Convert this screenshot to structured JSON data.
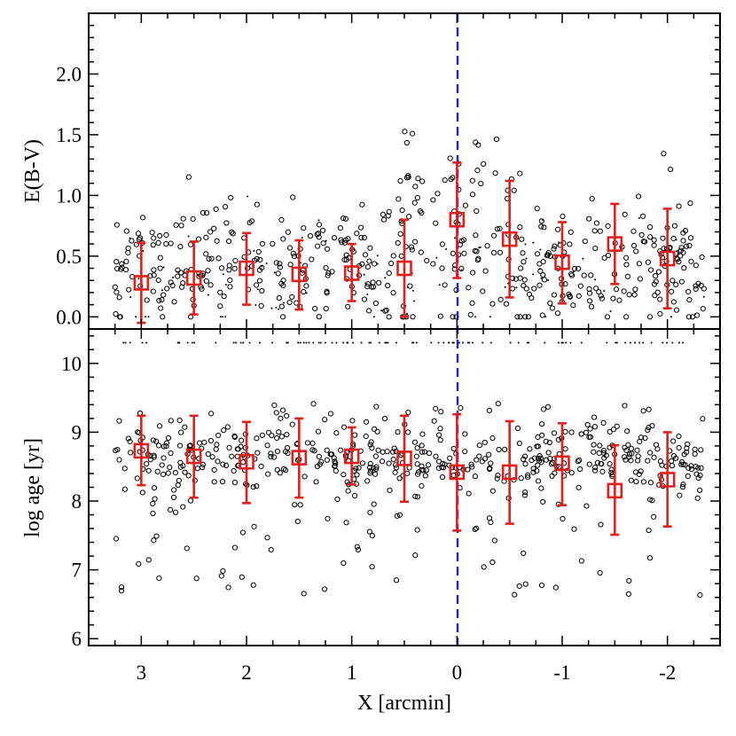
{
  "chart_data": {
    "type": "scatter",
    "xlabel": "X [arcmin]",
    "xlim": [
      3.5,
      -2.5
    ],
    "xticks": [
      3,
      2,
      1,
      0,
      -1,
      -2
    ],
    "xtick_labels": [
      "3",
      "2",
      "1",
      "0",
      "-1",
      "-2"
    ],
    "reference_line": {
      "x": 0,
      "style": "dashed",
      "color": "#1f1fd6"
    },
    "colors": {
      "scatter": "#000000",
      "binned": "#e0201c",
      "reference": "#1f1fd6"
    },
    "panels": [
      {
        "name": "top",
        "ylabel": "E(B-V)",
        "ylim": [
          -0.1,
          2.5
        ],
        "yticks": [
          0.0,
          0.5,
          1.0,
          1.5,
          2.0
        ],
        "ytick_labels": [
          "0.0",
          "0.5",
          "1.0",
          "1.5",
          "2.0"
        ],
        "binned": {
          "x": [
            3,
            2.5,
            2,
            1.5,
            1,
            0.5,
            0,
            -0.5,
            -1,
            -1.5,
            -2
          ],
          "y": [
            0.28,
            0.32,
            0.4,
            0.35,
            0.36,
            0.4,
            0.8,
            0.64,
            0.45,
            0.6,
            0.48
          ],
          "err_low": [
            -0.05,
            0.02,
            0.1,
            0.06,
            0.13,
            0.0,
            0.32,
            0.16,
            0.11,
            0.27,
            0.07
          ],
          "err_high": [
            0.61,
            0.62,
            0.69,
            0.63,
            0.6,
            0.8,
            1.27,
            1.12,
            0.78,
            0.93,
            0.89
          ]
        },
        "scatter_seed": 11,
        "scatter_count": 520
      },
      {
        "name": "bottom",
        "ylabel": "log age [yr]",
        "ylim": [
          5.9,
          10.5
        ],
        "yticks": [
          6,
          7,
          8,
          9,
          10
        ],
        "ytick_labels": [
          "6",
          "7",
          "8",
          "9",
          "10"
        ],
        "binned": {
          "x": [
            3,
            2.5,
            2,
            1.5,
            1,
            0.5,
            0,
            -0.5,
            -1,
            -1.5,
            -2
          ],
          "y": [
            8.73,
            8.65,
            8.57,
            8.63,
            8.65,
            8.62,
            8.42,
            8.42,
            8.55,
            8.15,
            8.31
          ],
          "err_low": [
            8.23,
            8.05,
            7.97,
            8.05,
            8.24,
            7.99,
            7.57,
            7.67,
            7.94,
            7.51,
            7.63
          ],
          "err_high": [
            9.24,
            9.24,
            9.15,
            9.2,
            9.07,
            9.24,
            9.26,
            9.16,
            9.13,
            8.81,
            9.0
          ]
        },
        "scatter_seed": 29,
        "scatter_count": 560
      }
    ]
  }
}
